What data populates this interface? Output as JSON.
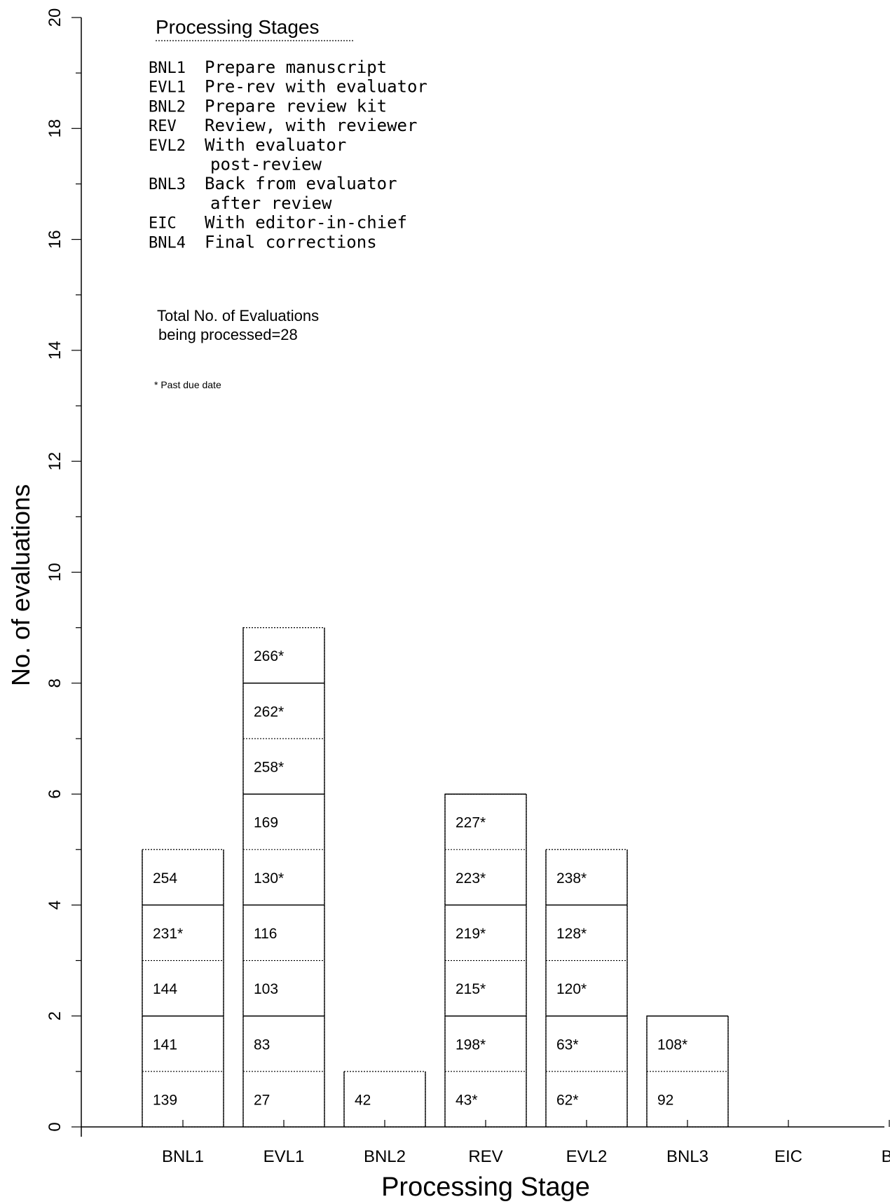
{
  "chart_data": {
    "type": "bar",
    "subtype": "stacked-cells",
    "title": "",
    "xlabel": "Processing Stage",
    "ylabel": "No. of evaluations",
    "ylim": [
      0,
      20
    ],
    "y_ticks": [
      "0",
      "2",
      "4",
      "6",
      "8",
      "10",
      "12",
      "14",
      "16",
      "18",
      "20"
    ],
    "categories": [
      "BNL1",
      "EVL1",
      "BNL2",
      "REV",
      "EVL2",
      "BNL3",
      "EIC",
      "B."
    ],
    "values": [
      5,
      9,
      1,
      6,
      5,
      2,
      0,
      0
    ],
    "cells": [
      [
        "139",
        "141",
        "144",
        "231*",
        "254"
      ],
      [
        "27",
        "83",
        "103",
        "116",
        "130*",
        "169",
        "258*",
        "262*",
        "266*"
      ],
      [
        "42"
      ],
      [
        "43*",
        "198*",
        "215*",
        "219*",
        "223*",
        "227*"
      ],
      [
        "62*",
        "63*",
        "120*",
        "128*",
        "238*"
      ],
      [
        "92",
        "108*"
      ],
      [],
      []
    ],
    "grid": false,
    "legend_placement": "top-left"
  },
  "legend": {
    "heading": "Processing Stages",
    "entries": [
      {
        "code": "BNL1",
        "text": "Prepare manuscript"
      },
      {
        "code": "EVL1",
        "text": "Pre-rev with evaluator"
      },
      {
        "code": "BNL2",
        "text": "Prepare review kit"
      },
      {
        "code": "REV",
        "text": "Review, with reviewer"
      },
      {
        "code": "EVL2",
        "text": "With evaluator"
      },
      {
        "code": "",
        "text": "post-review"
      },
      {
        "code": "BNL3",
        "text": "Back from evaluator"
      },
      {
        "code": "",
        "text": "after review"
      },
      {
        "code": "EIC",
        "text": "With editor-in-chief"
      },
      {
        "code": "BNL4",
        "text": "Final corrections"
      }
    ]
  },
  "annotations": {
    "total_line1": "Total No. of Evaluations",
    "total_line2": "being processed=28",
    "past_due_note": "* Past due date"
  }
}
